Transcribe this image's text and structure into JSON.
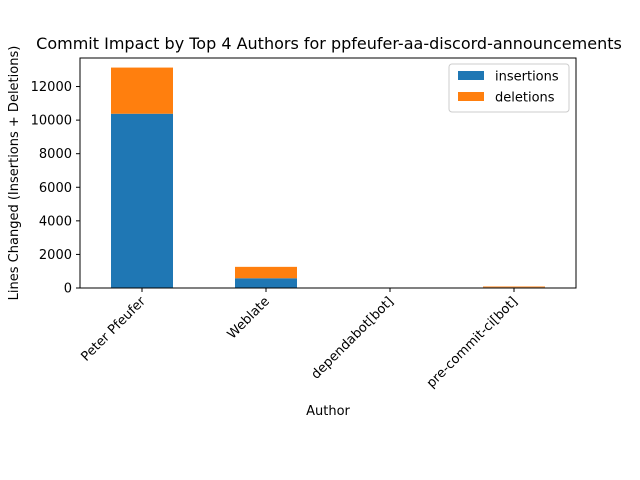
{
  "chart_data": {
    "type": "bar",
    "stacked": true,
    "title": "Commit Impact by Top 4 Authors for ppfeufer-aa-discord-announcements",
    "xlabel": "Author",
    "ylabel": "Lines Changed (Insertions + Deletions)",
    "categories": [
      "Peter Pfeufer",
      "Weblate",
      "dependabot[bot]",
      "pre-commit-ci[bot]"
    ],
    "series": [
      {
        "name": "insertions",
        "color": "#1f77b4",
        "values": [
          10380,
          580,
          5,
          40
        ]
      },
      {
        "name": "deletions",
        "color": "#ff7f0e",
        "values": [
          2750,
          680,
          5,
          50
        ]
      }
    ],
    "ylim": [
      0,
      13700
    ],
    "yticks": [
      0,
      2000,
      4000,
      6000,
      8000,
      10000,
      12000
    ],
    "grid": false,
    "legend_position": "top-right"
  }
}
